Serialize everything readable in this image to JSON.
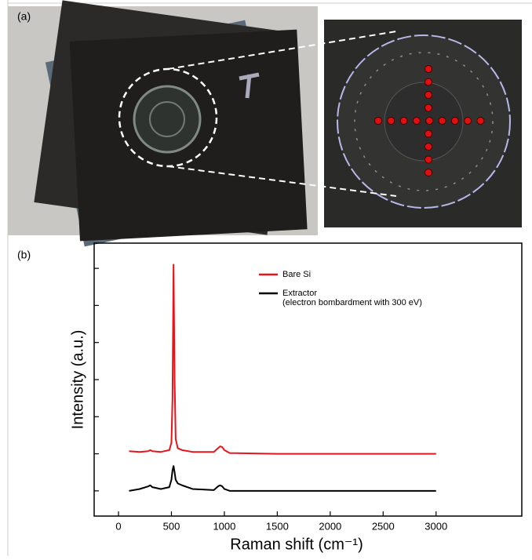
{
  "panel_a": {
    "label": "(a)"
  },
  "chart_data": {
    "type": "line",
    "panel_label": "(b)",
    "x_label": "Raman shift (cm⁻¹)",
    "y_label": "Intensity (a.u.)",
    "x": [
      100,
      200,
      280,
      300,
      320,
      400,
      480,
      500,
      510,
      520,
      530,
      540,
      560,
      600,
      700,
      900,
      940,
      960,
      980,
      1000,
      1050,
      1500,
      2000,
      2500,
      3000
    ],
    "series": [
      {
        "name": "Bare Si",
        "color": "#e8141b",
        "values": [
          2.07,
          2.05,
          2.07,
          2.1,
          2.07,
          2.05,
          2.1,
          2.3,
          3.5,
          7.1,
          4.0,
          2.4,
          2.15,
          2.1,
          2.05,
          2.05,
          2.15,
          2.2,
          2.18,
          2.1,
          2.02,
          2.0,
          2.0,
          2.0,
          2.0
        ]
      },
      {
        "name": "Extractor",
        "note": "(electron bombardment with 300 eV)",
        "color": "#000000",
        "values": [
          1.0,
          1.05,
          1.12,
          1.15,
          1.1,
          1.05,
          1.1,
          1.3,
          1.55,
          1.67,
          1.5,
          1.3,
          1.2,
          1.15,
          1.05,
          1.02,
          1.12,
          1.15,
          1.12,
          1.05,
          1.0,
          1.0,
          1.0,
          1.0,
          1.0
        ]
      }
    ],
    "xlim": [
      -230,
      3810
    ],
    "xticks": [
      0,
      500,
      1000,
      1500,
      2000,
      2500,
      3000
    ],
    "ylim": [
      0.32,
      7.68
    ],
    "yticks": [
      1,
      2,
      3,
      4,
      5,
      6,
      7
    ]
  }
}
